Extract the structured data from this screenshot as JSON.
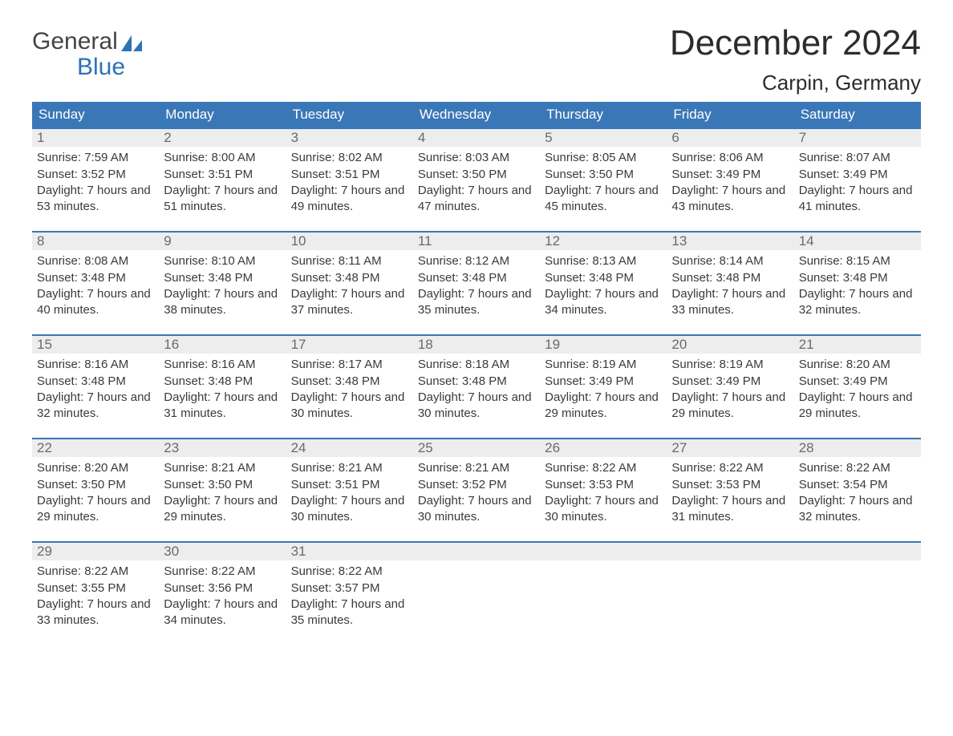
{
  "logo": {
    "text_top": "General",
    "text_bottom": "Blue",
    "sail_color": "#2e72b8"
  },
  "title": "December 2024",
  "location": "Carpin, Germany",
  "colors": {
    "header_bg": "#3a77b7",
    "header_text": "#ffffff",
    "daynum_bg": "#ededed",
    "daynum_text": "#6a6a6a",
    "body_text": "#3a3a3a",
    "week_border": "#3a77b7",
    "page_bg": "#ffffff"
  },
  "day_names": [
    "Sunday",
    "Monday",
    "Tuesday",
    "Wednesday",
    "Thursday",
    "Friday",
    "Saturday"
  ],
  "labels": {
    "sunrise": "Sunrise:",
    "sunset": "Sunset:",
    "daylight": "Daylight:"
  },
  "weeks": [
    [
      {
        "n": "1",
        "sunrise": "7:59 AM",
        "sunset": "3:52 PM",
        "daylight": "7 hours and 53 minutes."
      },
      {
        "n": "2",
        "sunrise": "8:00 AM",
        "sunset": "3:51 PM",
        "daylight": "7 hours and 51 minutes."
      },
      {
        "n": "3",
        "sunrise": "8:02 AM",
        "sunset": "3:51 PM",
        "daylight": "7 hours and 49 minutes."
      },
      {
        "n": "4",
        "sunrise": "8:03 AM",
        "sunset": "3:50 PM",
        "daylight": "7 hours and 47 minutes."
      },
      {
        "n": "5",
        "sunrise": "8:05 AM",
        "sunset": "3:50 PM",
        "daylight": "7 hours and 45 minutes."
      },
      {
        "n": "6",
        "sunrise": "8:06 AM",
        "sunset": "3:49 PM",
        "daylight": "7 hours and 43 minutes."
      },
      {
        "n": "7",
        "sunrise": "8:07 AM",
        "sunset": "3:49 PM",
        "daylight": "7 hours and 41 minutes."
      }
    ],
    [
      {
        "n": "8",
        "sunrise": "8:08 AM",
        "sunset": "3:48 PM",
        "daylight": "7 hours and 40 minutes."
      },
      {
        "n": "9",
        "sunrise": "8:10 AM",
        "sunset": "3:48 PM",
        "daylight": "7 hours and 38 minutes."
      },
      {
        "n": "10",
        "sunrise": "8:11 AM",
        "sunset": "3:48 PM",
        "daylight": "7 hours and 37 minutes."
      },
      {
        "n": "11",
        "sunrise": "8:12 AM",
        "sunset": "3:48 PM",
        "daylight": "7 hours and 35 minutes."
      },
      {
        "n": "12",
        "sunrise": "8:13 AM",
        "sunset": "3:48 PM",
        "daylight": "7 hours and 34 minutes."
      },
      {
        "n": "13",
        "sunrise": "8:14 AM",
        "sunset": "3:48 PM",
        "daylight": "7 hours and 33 minutes."
      },
      {
        "n": "14",
        "sunrise": "8:15 AM",
        "sunset": "3:48 PM",
        "daylight": "7 hours and 32 minutes."
      }
    ],
    [
      {
        "n": "15",
        "sunrise": "8:16 AM",
        "sunset": "3:48 PM",
        "daylight": "7 hours and 32 minutes."
      },
      {
        "n": "16",
        "sunrise": "8:16 AM",
        "sunset": "3:48 PM",
        "daylight": "7 hours and 31 minutes."
      },
      {
        "n": "17",
        "sunrise": "8:17 AM",
        "sunset": "3:48 PM",
        "daylight": "7 hours and 30 minutes."
      },
      {
        "n": "18",
        "sunrise": "8:18 AM",
        "sunset": "3:48 PM",
        "daylight": "7 hours and 30 minutes."
      },
      {
        "n": "19",
        "sunrise": "8:19 AM",
        "sunset": "3:49 PM",
        "daylight": "7 hours and 29 minutes."
      },
      {
        "n": "20",
        "sunrise": "8:19 AM",
        "sunset": "3:49 PM",
        "daylight": "7 hours and 29 minutes."
      },
      {
        "n": "21",
        "sunrise": "8:20 AM",
        "sunset": "3:49 PM",
        "daylight": "7 hours and 29 minutes."
      }
    ],
    [
      {
        "n": "22",
        "sunrise": "8:20 AM",
        "sunset": "3:50 PM",
        "daylight": "7 hours and 29 minutes."
      },
      {
        "n": "23",
        "sunrise": "8:21 AM",
        "sunset": "3:50 PM",
        "daylight": "7 hours and 29 minutes."
      },
      {
        "n": "24",
        "sunrise": "8:21 AM",
        "sunset": "3:51 PM",
        "daylight": "7 hours and 30 minutes."
      },
      {
        "n": "25",
        "sunrise": "8:21 AM",
        "sunset": "3:52 PM",
        "daylight": "7 hours and 30 minutes."
      },
      {
        "n": "26",
        "sunrise": "8:22 AM",
        "sunset": "3:53 PM",
        "daylight": "7 hours and 30 minutes."
      },
      {
        "n": "27",
        "sunrise": "8:22 AM",
        "sunset": "3:53 PM",
        "daylight": "7 hours and 31 minutes."
      },
      {
        "n": "28",
        "sunrise": "8:22 AM",
        "sunset": "3:54 PM",
        "daylight": "7 hours and 32 minutes."
      }
    ],
    [
      {
        "n": "29",
        "sunrise": "8:22 AM",
        "sunset": "3:55 PM",
        "daylight": "7 hours and 33 minutes."
      },
      {
        "n": "30",
        "sunrise": "8:22 AM",
        "sunset": "3:56 PM",
        "daylight": "7 hours and 34 minutes."
      },
      {
        "n": "31",
        "sunrise": "8:22 AM",
        "sunset": "3:57 PM",
        "daylight": "7 hours and 35 minutes."
      },
      {
        "empty": true
      },
      {
        "empty": true
      },
      {
        "empty": true
      },
      {
        "empty": true
      }
    ]
  ]
}
